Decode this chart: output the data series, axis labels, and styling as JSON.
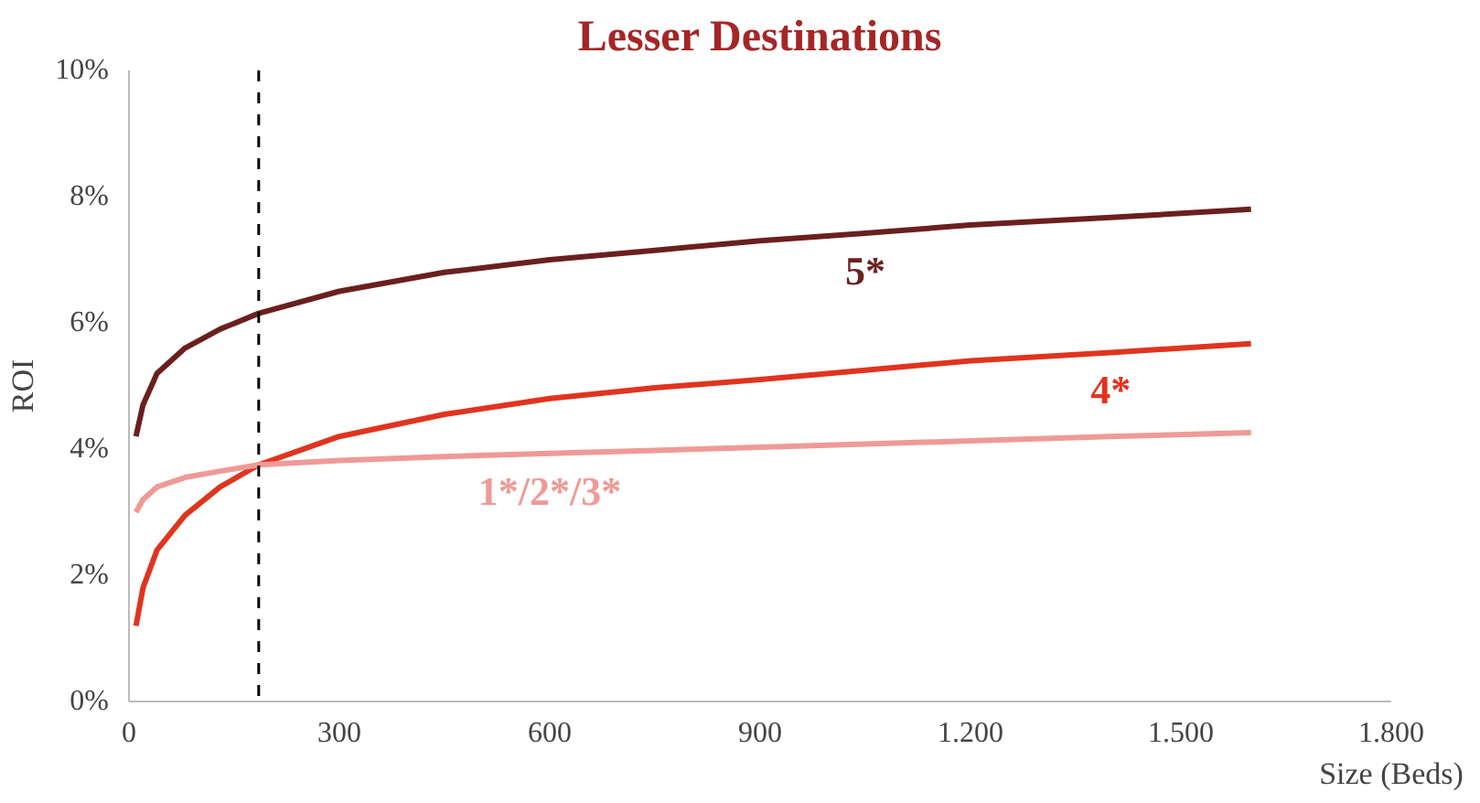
{
  "chart_data": {
    "type": "line",
    "title": "Lesser Destinations",
    "xlabel": "Size (Beds)",
    "ylabel": "ROI",
    "xlim": [
      0,
      1800
    ],
    "xticks": [
      0,
      300,
      600,
      900,
      {
        "value": 1200,
        "label": "1.200"
      },
      {
        "value": 1500,
        "label": "1.500"
      },
      {
        "value": 1800,
        "label": "1.800"
      }
    ],
    "ylim": [
      0,
      10
    ],
    "yticks": [
      {
        "value": 0,
        "label": "0%"
      },
      {
        "value": 2,
        "label": "2%"
      },
      {
        "value": 4,
        "label": "4%"
      },
      {
        "value": 6,
        "label": "6%"
      },
      {
        "value": 8,
        "label": "8%"
      },
      {
        "value": 10,
        "label": "10%"
      }
    ],
    "grid": false,
    "legend": false,
    "marker": "none",
    "line_style": "solid",
    "x": [
      10,
      20,
      40,
      80,
      130,
      185,
      300,
      450,
      600,
      750,
      900,
      1050,
      1200,
      1400,
      1600
    ],
    "series": [
      {
        "name": "5*",
        "color": "#6b1f1f",
        "values": [
          4.2,
          4.7,
          5.2,
          5.6,
          5.9,
          6.15,
          6.5,
          6.8,
          7.0,
          7.15,
          7.3,
          7.42,
          7.55,
          7.67,
          7.8
        ]
      },
      {
        "name": "4*",
        "color": "#e0341f",
        "values": [
          1.2,
          1.8,
          2.4,
          2.95,
          3.4,
          3.75,
          4.2,
          4.55,
          4.8,
          4.97,
          5.1,
          5.25,
          5.4,
          5.53,
          5.67
        ]
      },
      {
        "name": "1*/2*/3*",
        "color": "#ef9a96",
        "values": [
          3.0,
          3.2,
          3.4,
          3.55,
          3.65,
          3.75,
          3.82,
          3.88,
          3.93,
          3.98,
          4.03,
          4.08,
          4.13,
          4.2,
          4.26
        ]
      }
    ],
    "ref_lines": [
      {
        "axis": "x",
        "value": 185,
        "color": "#000000",
        "line_style": "dashed"
      }
    ]
  }
}
